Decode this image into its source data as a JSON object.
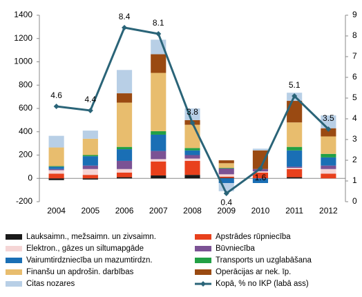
{
  "chart_data": {
    "type": "bar+line",
    "categories": [
      "2004",
      "2005",
      "2006",
      "2007",
      "2008",
      "2009",
      "2010",
      "2011",
      "2012"
    ],
    "series": [
      {
        "name": "Lauksaimn., mežsaimn. un zivsaimn.",
        "color": "#1a1a1a",
        "values": [
          -15,
          -10,
          10,
          25,
          30,
          5,
          0,
          10,
          0
        ]
      },
      {
        "name": "Apstrādes rūpniecība",
        "color": "#e8401c",
        "values": [
          40,
          30,
          40,
          120,
          120,
          10,
          50,
          70,
          40
        ]
      },
      {
        "name": "Elektron., gāzes un siltumapgāde",
        "color": "#f5d5d5",
        "values": [
          30,
          50,
          30,
          20,
          20,
          20,
          10,
          10,
          40
        ]
      },
      {
        "name": "Būvniecība",
        "color": "#7b5294",
        "values": [
          10,
          30,
          70,
          70,
          30,
          50,
          20,
          10,
          30
        ]
      },
      {
        "name": "Vairumtirdzniecība un mazumtirdzn.",
        "color": "#1a6fb5",
        "values": [
          20,
          80,
          100,
          140,
          40,
          -40,
          -40,
          140,
          70
        ]
      },
      {
        "name": "Transports un uzglabāšana",
        "color": "#22a045",
        "values": [
          5,
          10,
          20,
          30,
          20,
          5,
          0,
          30,
          30
        ]
      },
      {
        "name": "Finanšu un apdrošin. darbības",
        "color": "#e8bd6e",
        "values": [
          160,
          140,
          380,
          500,
          200,
          40,
          0,
          210,
          150
        ]
      },
      {
        "name": "Operācijas ar nek. īp.",
        "color": "#9a4a12",
        "values": [
          0,
          0,
          80,
          160,
          40,
          25,
          160,
          185,
          70
        ]
      },
      {
        "name": "Citas nozares",
        "color": "#b8cfe6",
        "values": [
          100,
          70,
          200,
          125,
          100,
          -70,
          15,
          70,
          110
        ]
      },
      {
        "name": "Kopā, % no IKP (labā ass)",
        "color": "#2a6478",
        "type": "line",
        "axis": "y2",
        "values": [
          4.6,
          4.4,
          8.4,
          8.1,
          3.8,
          0.4,
          1.6,
          5.1,
          3.5
        ]
      }
    ],
    "ylim": [
      -200,
      1400
    ],
    "yticks": [
      -200,
      0,
      200,
      400,
      600,
      800,
      1000,
      1200,
      1400
    ],
    "y2lim": [
      0,
      9
    ],
    "y2ticks": [
      0,
      1,
      2,
      3,
      4,
      5,
      6,
      7,
      8,
      9
    ],
    "grid": false,
    "legend": "bottom"
  }
}
